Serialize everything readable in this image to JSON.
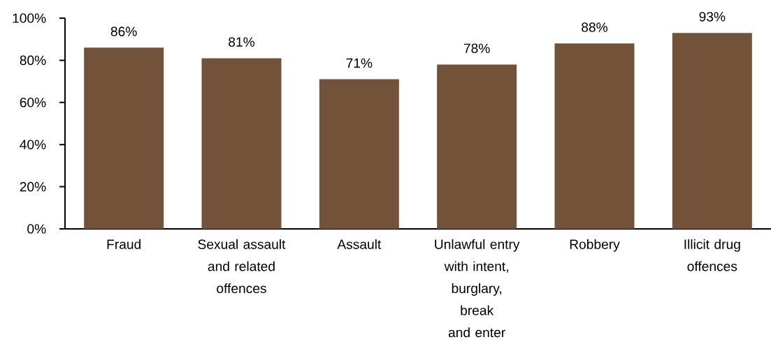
{
  "chart_data": {
    "type": "bar",
    "categories": [
      "Fraud",
      "Sexual assault and related offences",
      "Assault",
      "Unlawful entry with intent, burglary, break and enter",
      "Robbery",
      "Illicit drug offences"
    ],
    "values": [
      86,
      81,
      71,
      78,
      88,
      93
    ],
    "value_labels": [
      "86%",
      "81%",
      "71%",
      "78%",
      "88%",
      "93%"
    ],
    "color": "#725239",
    "ylim": [
      0,
      100
    ],
    "yticks": [
      {
        "value": 0,
        "label": "0%"
      },
      {
        "value": 20,
        "label": "20%"
      },
      {
        "value": 40,
        "label": "40%"
      },
      {
        "value": 60,
        "label": "60%"
      },
      {
        "value": 80,
        "label": "80%"
      },
      {
        "value": 100,
        "label": "100%"
      }
    ],
    "grid": false
  }
}
